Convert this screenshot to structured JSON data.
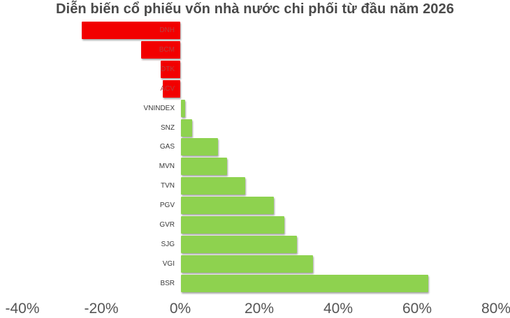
{
  "chart_data": {
    "type": "bar",
    "orientation": "horizontal",
    "title": "Diễn biến cổ phiếu vốn nhà nước chi phối từ đầu năm 2026",
    "xlabel": "",
    "ylabel": "",
    "xlim": [
      -40,
      80
    ],
    "x_ticks": [
      "-40%",
      "-20%",
      "0%",
      "20%",
      "40%",
      "60%",
      "80%"
    ],
    "grid": false,
    "legend": null,
    "categories": [
      "DNH",
      "BCM",
      "DTK",
      "ACV",
      "VNINDEX",
      "SNZ",
      "GAS",
      "MVN",
      "TVN",
      "PGV",
      "GVR",
      "SJG",
      "VGI",
      "BSR"
    ],
    "values": [
      -25.0,
      -10.0,
      -5.0,
      -4.4,
      1.0,
      2.8,
      9.4,
      11.7,
      16.2,
      23.5,
      26.2,
      29.4,
      33.5,
      62.6
    ],
    "colors": {
      "negative": "#f20000",
      "positive": "#8ed24f"
    }
  }
}
